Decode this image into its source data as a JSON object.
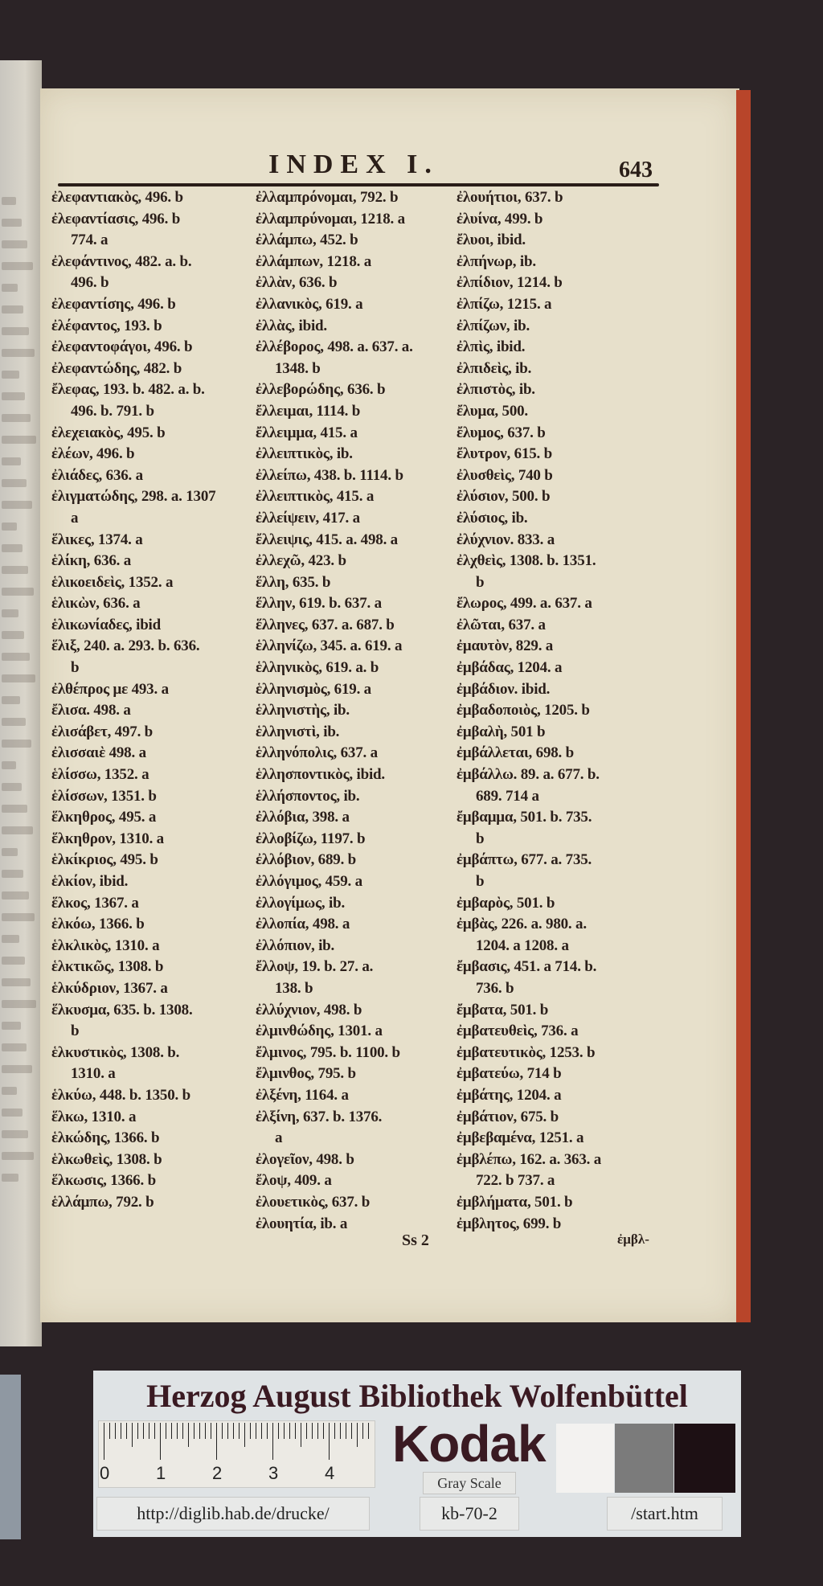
{
  "header": {
    "title": "INDEX I.",
    "page_number": "643"
  },
  "columns": [
    [
      {
        "t": "ἐλεφαντιακὸς, 496. b"
      },
      {
        "t": "ἐλεφαντίασις, 496. b"
      },
      {
        "t": "774. a",
        "cont": true
      },
      {
        "t": "ἐλεφάντινος, 482. a. b."
      },
      {
        "t": "496. b",
        "cont": true
      },
      {
        "t": "ἐλεφαντίσης, 496. b"
      },
      {
        "t": "ἐλέφαντος, 193. b"
      },
      {
        "t": "ἐλεφαντοφάγοι, 496. b"
      },
      {
        "t": "ἐλεφαντώδης, 482. b"
      },
      {
        "t": "ἔλεφας, 193. b. 482. a. b."
      },
      {
        "t": "496. b. 791. b",
        "cont": true
      },
      {
        "t": "ἐλεχειακὸς, 495. b"
      },
      {
        "t": "ἐλέων, 496. b"
      },
      {
        "t": "ἐλιάδες, 636. a"
      },
      {
        "t": "ἐλιγματώδης, 298. a. 1307"
      },
      {
        "t": "a",
        "cont": true
      },
      {
        "t": "ἕλικες, 1374. a"
      },
      {
        "t": "ἑλίκη, 636. a"
      },
      {
        "t": "ἑλικοειδεὶς, 1352. a"
      },
      {
        "t": "ἑλικὼν, 636. a"
      },
      {
        "t": "ἑλικωνίαδες, ibid"
      },
      {
        "t": "ἕλιξ, 240. a. 293. b. 636."
      },
      {
        "t": "b",
        "cont": true
      },
      {
        "t": "ἐλθέπρος με 493. a"
      },
      {
        "t": "ἔλισα. 498. a"
      },
      {
        "t": "ἐλισάβετ, 497. b"
      },
      {
        "t": "ἐλισσαιὲ 498. a"
      },
      {
        "t": "ἑλίσσω, 1352. a"
      },
      {
        "t": "ἑλίσσων, 1351. b"
      },
      {
        "t": "ἕλκηθρος, 495. a"
      },
      {
        "t": "ἕλκηθρον, 1310. a"
      },
      {
        "t": "ἑλκίκριος, 495. b"
      },
      {
        "t": "ἑλκίον, ibid."
      },
      {
        "t": "ἕλκος, 1367. a"
      },
      {
        "t": "ἑλκόω, 1366. b"
      },
      {
        "t": "ἑλκλικὸς, 1310. a"
      },
      {
        "t": "ἑλκτικῶς, 1308. b"
      },
      {
        "t": "ἑλκύδριον, 1367. a"
      },
      {
        "t": "ἕλκυσμα, 635. b. 1308."
      },
      {
        "t": "b",
        "cont": true
      },
      {
        "t": "ἑλκυστικὸς, 1308. b."
      },
      {
        "t": "1310. a",
        "cont": true
      },
      {
        "t": "ἑλκύω, 448. b. 1350. b"
      },
      {
        "t": "ἕλκω, 1310. a"
      },
      {
        "t": "ἑλκώδης, 1366. b"
      },
      {
        "t": "ἑλκωθεὶς, 1308. b"
      },
      {
        "t": "ἕλκωσις, 1366. b"
      },
      {
        "t": "ἑλλάμπω, 792. b"
      }
    ],
    [
      {
        "t": "ἐλλαμπρόνομαι, 792. b"
      },
      {
        "t": "ἐλλαμπρύνομαι, 1218. a"
      },
      {
        "t": "ἐλλάμπω, 452. b"
      },
      {
        "t": "ἐλλάμπων, 1218. a"
      },
      {
        "t": "ἐλλὰν, 636. b"
      },
      {
        "t": "ἐλλανικὸς, 619. a"
      },
      {
        "t": "ἐλλὰς, ibid."
      },
      {
        "t": "ἐλλέβορος, 498. a. 637. a."
      },
      {
        "t": "1348. b",
        "cont": true
      },
      {
        "t": "ἐλλεβορώδης, 636. b"
      },
      {
        "t": "ἔλλειμαι, 1114. b"
      },
      {
        "t": "ἔλλειμμα, 415. a"
      },
      {
        "t": "ἐλλειπτικὸς, ib."
      },
      {
        "t": "ἐλλείπω, 438. b. 1114. b"
      },
      {
        "t": "ἐλλειπτικὸς, 415. a"
      },
      {
        "t": "ἐλλείψειν, 417. a"
      },
      {
        "t": "ἔλλειψις, 415. a. 498. a"
      },
      {
        "t": "ἐλλεχῶ, 423. b"
      },
      {
        "t": "ἕλλη, 635. b"
      },
      {
        "t": "ἕλλην, 619. b. 637. a"
      },
      {
        "t": "ἕλληνες, 637. a. 687. b"
      },
      {
        "t": "ἑλληνίζω, 345. a. 619. a"
      },
      {
        "t": "ἑλληνικὸς, 619. a. b"
      },
      {
        "t": "ἑλληνισμὸς, 619. a"
      },
      {
        "t": "ἑλληνιστὴς, ib."
      },
      {
        "t": "ἑλληνιστὶ, ib."
      },
      {
        "t": "ἑλληνόπολις, 637. a"
      },
      {
        "t": "ἑλλησποντικὸς, ibid."
      },
      {
        "t": "ἑλλήσποντος, ib."
      },
      {
        "t": "ἐλλόβια, 398. a"
      },
      {
        "t": "ἐλλοβίζω, 1197. b"
      },
      {
        "t": "ἐλλόβιον, 689. b"
      },
      {
        "t": "ἐλλόγιμος, 459. a"
      },
      {
        "t": "ἐλλογίμως, ib."
      },
      {
        "t": "ἐλλοπία, 498. a"
      },
      {
        "t": "ἐλλόπιον, ib."
      },
      {
        "t": "ἔλλοψ, 19. b. 27. a."
      },
      {
        "t": "138. b",
        "cont": true
      },
      {
        "t": "ἐλλύχνιον, 498. b"
      },
      {
        "t": "ἐλμινθώδης, 1301. a"
      },
      {
        "t": "ἔλμινος, 795. b. 1100. b"
      },
      {
        "t": "ἔλμινθος, 795. b"
      },
      {
        "t": "ἐλξένη, 1164. a"
      },
      {
        "t": "ἐλξίνη, 637. b. 1376."
      },
      {
        "t": "a",
        "cont": true
      },
      {
        "t": "ἐλογεῖον, 498. b"
      },
      {
        "t": "ἔλοψ, 409. a"
      },
      {
        "t": "ἐλουετικὸς, 637. b"
      },
      {
        "t": "ἐλουητία, ib. a"
      }
    ],
    [
      {
        "t": "ἐλουήτιοι, 637. b"
      },
      {
        "t": "ἐλυίνα, 499. b"
      },
      {
        "t": "ἔλυοι, ibid."
      },
      {
        "t": "ἐλπήνωρ, ib."
      },
      {
        "t": "ἐλπίδιον, 1214. b"
      },
      {
        "t": "ἐλπίζω, 1215. a"
      },
      {
        "t": "ἐλπίζων, ib."
      },
      {
        "t": "ἐλπὶς, ibid."
      },
      {
        "t": "ἐλπιδεὶς, ib."
      },
      {
        "t": "ἐλπιστὸς, ib."
      },
      {
        "t": "ἔλυμα, 500."
      },
      {
        "t": "ἔλυμος, 637. b"
      },
      {
        "t": "ἔλυτρον, 615. b"
      },
      {
        "t": "ἐλυσθεὶς, 740 b"
      },
      {
        "t": "ἐλύσιον, 500. b"
      },
      {
        "t": "ἐλύσιος, ib."
      },
      {
        "t": "ἐλύχνιον. 833. a"
      },
      {
        "t": "ἐλχθεὶς, 1308. b. 1351."
      },
      {
        "t": "b",
        "cont": true
      },
      {
        "t": "ἔλωρος, 499. a. 637. a"
      },
      {
        "t": "ἐλῶται, 637. a"
      },
      {
        "t": "ἐμαυτὸν, 829. a"
      },
      {
        "t": "ἐμβάδας, 1204. a"
      },
      {
        "t": "ἐμβάδιον. ibid."
      },
      {
        "t": "ἐμβαδοποιὸς, 1205. b"
      },
      {
        "t": "ἐμβαλὴ, 501 b"
      },
      {
        "t": "ἐμβάλλεται, 698. b"
      },
      {
        "t": "ἐμβάλλω. 89. a. 677. b."
      },
      {
        "t": "689. 714 a",
        "cont": true
      },
      {
        "t": "ἔμβαμμα, 501. b. 735."
      },
      {
        "t": "b",
        "cont": true
      },
      {
        "t": "ἐμβάπτω, 677. a. 735."
      },
      {
        "t": "b",
        "cont": true
      },
      {
        "t": "ἐμβαρὸς, 501. b"
      },
      {
        "t": "ἐμβὰς, 226. a. 980. a."
      },
      {
        "t": "1204. a 1208. a",
        "cont": true
      },
      {
        "t": "ἔμβασις, 451. a 714. b."
      },
      {
        "t": "736. b",
        "cont": true
      },
      {
        "t": "ἔμβατα, 501. b"
      },
      {
        "t": "ἐμβατευθεὶς, 736. a"
      },
      {
        "t": "ἐμβατευτικὸς, 1253. b"
      },
      {
        "t": "ἐμβατεύω, 714 b"
      },
      {
        "t": "ἐμβάτης, 1204. a"
      },
      {
        "t": "ἐμβάτιον, 675. b"
      },
      {
        "t": "ἐμβεβαμένα, 1251. a"
      },
      {
        "t": "ἐμβλέπω, 162. a. 363. a"
      },
      {
        "t": "722. b 737. a",
        "cont": true
      },
      {
        "t": "ἐμβλήματα, 501. b"
      },
      {
        "t": "ἐμβλητος, 699. b"
      }
    ]
  ],
  "footer": {
    "signature": "Ss 2",
    "catchword": "ἐμβλ-"
  },
  "card": {
    "title": "Herzog August Bibliothek Wolfenbüttel",
    "ruler_numbers": [
      "0",
      "1",
      "2",
      "3",
      "4"
    ],
    "brand": "Kodak",
    "gray_scale_label": "Gray Scale",
    "gray_swatches": [
      "#f3f2f0",
      "#7b7b7b",
      "#1d1014"
    ],
    "url_prefix": "http://diglib.hab.de/drucke/",
    "shelfmark": "kb-70-2",
    "url_suffix": "/start.htm"
  },
  "colors": {
    "paper": "#e7e0cb",
    "ink": "#2b1f1a",
    "edge": "#b8452a",
    "background": "#2b2326"
  }
}
